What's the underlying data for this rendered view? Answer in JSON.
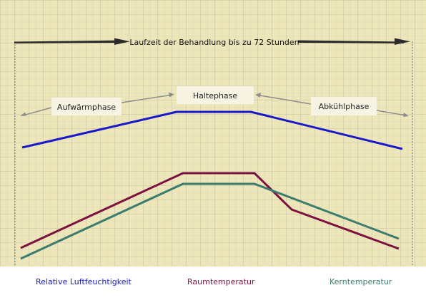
{
  "title": "Laufzeit der Behandlung bis zu 72 Stunden",
  "phases": {
    "warmup": "Aufwärmphase",
    "hold": "Haltephase",
    "cooldown": "Abkühlphase"
  },
  "legend": {
    "humidity": "Relative Luftfeuchtigkeit",
    "room_temperature": "Raumtemperatur",
    "core_temperature": "Kerntemperatur"
  },
  "colors": {
    "paper": "#ede6b9",
    "grid_fine": "#d4cfb0",
    "grid_major": "#bcb8a8",
    "humidity": "#1a19c9",
    "room_temperature": "#7d1140",
    "core_temperature": "#3a7c6d",
    "arrow": "#2b2b2b",
    "phase_arrow": "#8f8f8f",
    "label_box": "#f8f4e3"
  },
  "icons": {
    "runtime_arrow": "double-headed-arrow",
    "phase_arrow": "pointer-arrow"
  }
}
